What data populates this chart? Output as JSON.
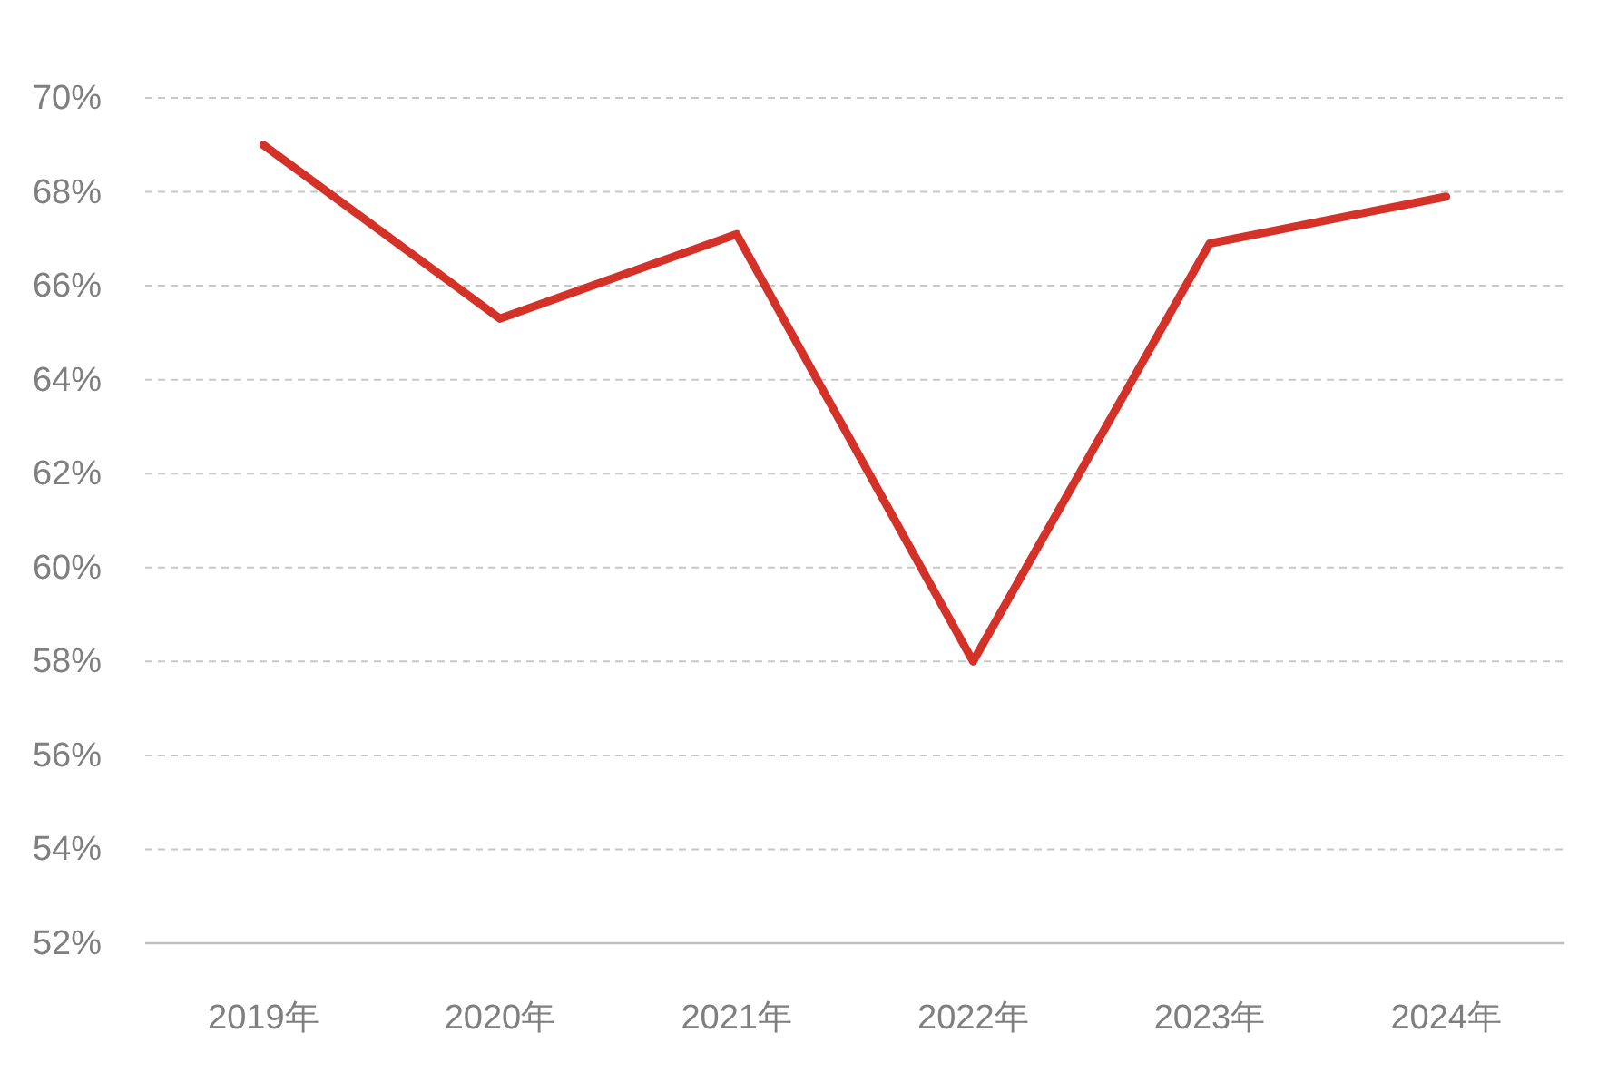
{
  "chart_data": {
    "type": "line",
    "categories": [
      "2019年",
      "2020年",
      "2021年",
      "2022年",
      "2023年",
      "2024年"
    ],
    "series": [
      {
        "color": "#d43228",
        "values": [
          69.0,
          65.3,
          67.1,
          58.0,
          66.9,
          67.9
        ]
      }
    ],
    "ylim": [
      52,
      70
    ],
    "yticks": [
      {
        "value": 52,
        "label": "52%"
      },
      {
        "value": 54,
        "label": "54%"
      },
      {
        "value": 56,
        "label": "56%"
      },
      {
        "value": 58,
        "label": "58%"
      },
      {
        "value": 60,
        "label": "60%"
      },
      {
        "value": 62,
        "label": "62%"
      },
      {
        "value": 64,
        "label": "64%"
      },
      {
        "value": 66,
        "label": "66%"
      },
      {
        "value": 68,
        "label": "68%"
      },
      {
        "value": 70,
        "label": "70%"
      }
    ],
    "grid": "y"
  }
}
